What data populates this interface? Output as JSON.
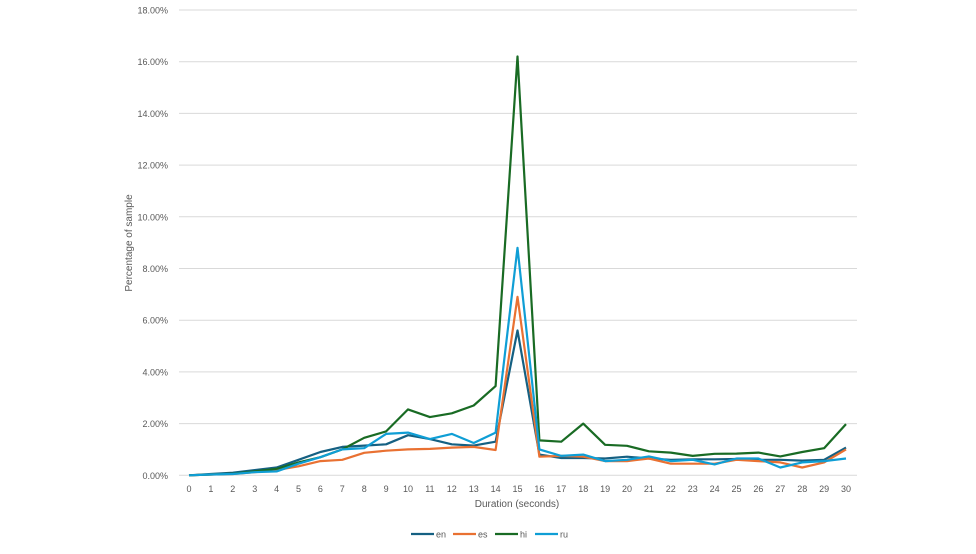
{
  "chart_data": {
    "type": "line",
    "title": "",
    "xlabel": "Duration (seconds)",
    "ylabel": "Percentage of sample",
    "ylim": [
      0,
      18
    ],
    "yticks": [
      "0.00%",
      "2.00%",
      "4.00%",
      "6.00%",
      "8.00%",
      "10.00%",
      "12.00%",
      "14.00%",
      "16.00%",
      "18.00%"
    ],
    "x": [
      0,
      1,
      2,
      3,
      4,
      5,
      6,
      7,
      8,
      9,
      10,
      11,
      12,
      13,
      14,
      15,
      16,
      17,
      18,
      19,
      20,
      21,
      22,
      23,
      24,
      25,
      26,
      27,
      28,
      29,
      30
    ],
    "grid": true,
    "legend_position": "bottom",
    "series": [
      {
        "name": "en",
        "color": "#156082",
        "values": [
          0,
          0.05,
          0.1,
          0.2,
          0.3,
          0.6,
          0.9,
          1.1,
          1.15,
          1.2,
          1.55,
          1.4,
          1.2,
          1.15,
          1.3,
          5.6,
          0.8,
          0.67,
          0.67,
          0.65,
          0.72,
          0.65,
          0.6,
          0.62,
          0.62,
          0.63,
          0.6,
          0.6,
          0.57,
          0.6,
          1.07
        ]
      },
      {
        "name": "es",
        "color": "#E97132",
        "values": [
          0,
          0.03,
          0.05,
          0.12,
          0.2,
          0.35,
          0.55,
          0.6,
          0.87,
          0.95,
          1.0,
          1.02,
          1.07,
          1.1,
          0.98,
          6.9,
          0.72,
          0.75,
          0.72,
          0.55,
          0.55,
          0.65,
          0.45,
          0.45,
          0.45,
          0.6,
          0.55,
          0.5,
          0.3,
          0.5,
          1.0
        ]
      },
      {
        "name": "hi",
        "color": "#196B24",
        "values": [
          0,
          0.03,
          0.06,
          0.15,
          0.25,
          0.5,
          0.7,
          1.0,
          1.45,
          1.7,
          2.55,
          2.25,
          2.4,
          2.7,
          3.45,
          16.2,
          1.35,
          1.3,
          2.0,
          1.18,
          1.14,
          0.93,
          0.88,
          0.75,
          0.83,
          0.84,
          0.88,
          0.73,
          0.9,
          1.05,
          1.98
        ]
      },
      {
        "name": "ru",
        "color": "#0F9ED5",
        "values": [
          0,
          0.03,
          0.05,
          0.12,
          0.15,
          0.45,
          0.7,
          1.0,
          1.05,
          1.6,
          1.65,
          1.4,
          1.6,
          1.25,
          1.65,
          8.8,
          1.0,
          0.75,
          0.8,
          0.55,
          0.6,
          0.73,
          0.55,
          0.6,
          0.42,
          0.65,
          0.65,
          0.3,
          0.5,
          0.55,
          0.65
        ]
      }
    ]
  }
}
